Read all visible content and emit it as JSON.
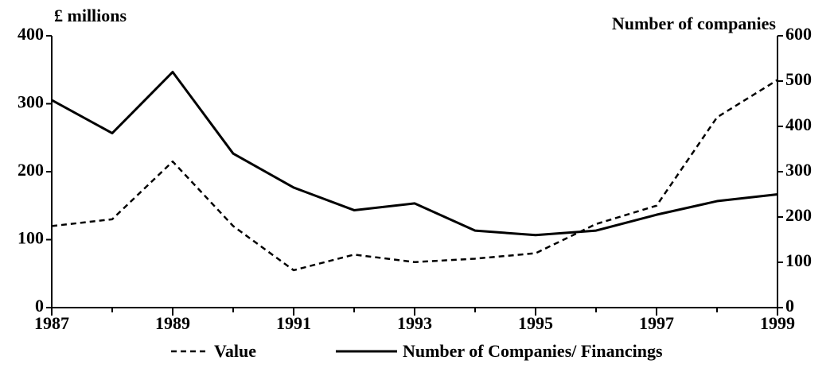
{
  "chart_data": {
    "type": "line",
    "y_label": "£ millions",
    "y2_label": "Number of companies",
    "x": [
      1987,
      1988,
      1989,
      1990,
      1991,
      1992,
      1993,
      1994,
      1995,
      1996,
      1997,
      1998,
      1999
    ],
    "xlim": [
      1987,
      1999
    ],
    "xticks": [
      1987,
      1989,
      1991,
      1993,
      1995,
      1997,
      1999
    ],
    "ylim": [
      0,
      400
    ],
    "yticks": [
      0,
      100,
      200,
      300,
      400
    ],
    "y2lim": [
      0,
      600
    ],
    "y2ticks": [
      0,
      100,
      200,
      300,
      400,
      500,
      600
    ],
    "grid": false,
    "legend": "bottom",
    "series": [
      {
        "name": "Value",
        "color": "#000000",
        "dash": true,
        "values": [
          120,
          130,
          215,
          120,
          55,
          78,
          67,
          72,
          80,
          123,
          150,
          280,
          335
        ]
      },
      {
        "name": "Number of Companies/ Financings",
        "color": "#000000",
        "dash": false,
        "axis": "y2",
        "values": [
          458,
          385,
          520,
          340,
          265,
          215,
          230,
          170,
          160,
          170,
          205,
          235,
          250
        ]
      }
    ]
  }
}
